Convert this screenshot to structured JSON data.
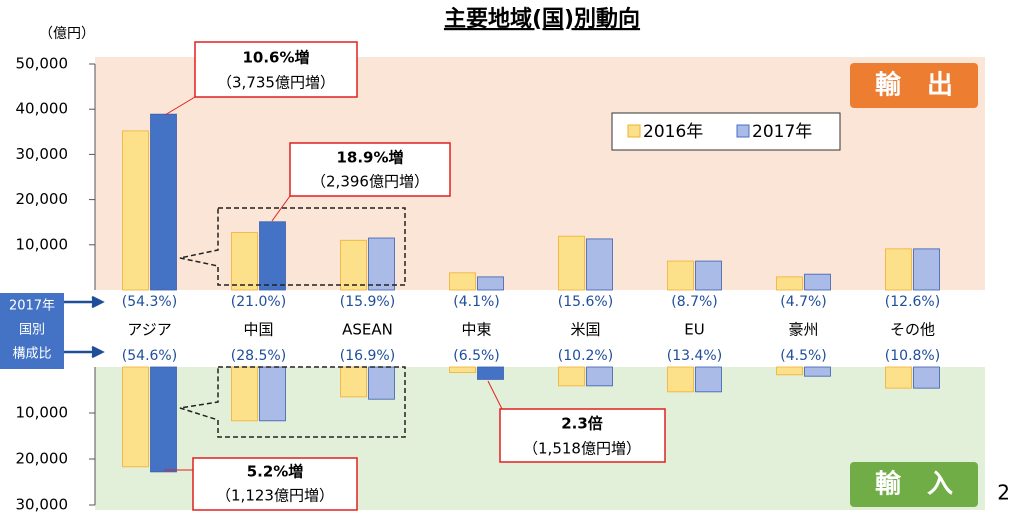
{
  "title": "主要地域(国)別動向",
  "unit": "（億円）",
  "page_number": "2",
  "side_tag": [
    "2017年",
    "国別",
    "構成比"
  ],
  "chart_data": [
    {
      "type": "bar",
      "label": "輸　出",
      "categories": [
        "アジア",
        "中国",
        "ASEAN",
        "中東",
        "米国",
        "EU",
        "豪州",
        "その他"
      ],
      "share_labels": [
        "(54.3%)",
        "(21.0%)",
        "(15.9%)",
        "(4.1%)",
        "(15.6%)",
        "(8.7%)",
        "(4.7%)",
        "(12.6%)"
      ],
      "series": [
        {
          "name": "2016年",
          "color": "#fde08a",
          "values": [
            35200,
            12700,
            11000,
            3800,
            11900,
            6400,
            2900,
            9100
          ]
        },
        {
          "name": "2017年",
          "color": "#a9bbe6",
          "colors": [
            "#4472c4",
            "#4472c4",
            "#a9bbe6",
            "#a9bbe6",
            "#a9bbe6",
            "#a9bbe6",
            "#a9bbe6",
            "#a9bbe6"
          ],
          "values": [
            38900,
            15100,
            11500,
            2900,
            11300,
            6400,
            3500,
            9100
          ]
        }
      ],
      "ylim": [
        0,
        50000
      ],
      "yticks": [
        {
          "value": 10000,
          "label": "10,000"
        },
        {
          "value": 20000,
          "label": "20,000"
        },
        {
          "value": 30000,
          "label": "30,000"
        },
        {
          "value": 40000,
          "label": "40,000"
        },
        {
          "value": 50000,
          "label": "50,000"
        }
      ],
      "invert_y": false,
      "annotations": [
        {
          "title": "10.6%増",
          "detail": "（3,735億円増）"
        },
        {
          "title": "18.9%増",
          "detail": "（2,396億円増）"
        }
      ]
    },
    {
      "type": "bar",
      "label": "輸　入",
      "share_labels": [
        "(54.6%)",
        "(28.5%)",
        "(16.9%)",
        "(6.5%)",
        "(10.2%)",
        "(13.4%)",
        "(4.5%)",
        "(10.8%)"
      ],
      "series": [
        {
          "name": "2016年",
          "color": "#fde08a",
          "values": [
            21700,
            11700,
            6500,
            1200,
            4100,
            5400,
            1700,
            4600
          ]
        },
        {
          "name": "2017年",
          "color": "#a9bbe6",
          "colors": [
            "#4472c4",
            "#a9bbe6",
            "#a9bbe6",
            "#4472c4",
            "#a9bbe6",
            "#a9bbe6",
            "#a9bbe6",
            "#a9bbe6"
          ],
          "values": [
            22800,
            11700,
            7000,
            2700,
            4100,
            5400,
            2000,
            4600
          ]
        }
      ],
      "ylim": [
        0,
        30000
      ],
      "yticks": [
        {
          "value": 10000,
          "label": "10,000"
        },
        {
          "value": 20000,
          "label": "20,000"
        },
        {
          "value": 30000,
          "label": "30,000"
        }
      ],
      "invert_y": true,
      "annotations": [
        {
          "title": "2.3倍",
          "detail": "（1,518億円増）"
        },
        {
          "title": "5.2%増",
          "detail": "（1,123億円増）"
        }
      ]
    }
  ]
}
